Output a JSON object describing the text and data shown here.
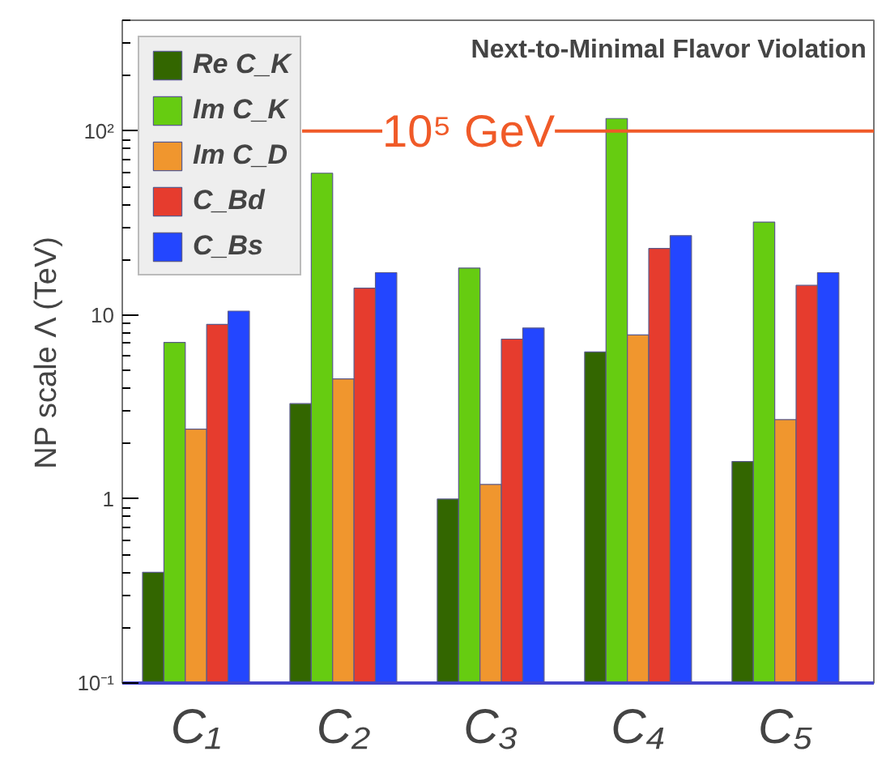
{
  "chart_data": {
    "type": "bar",
    "title": "Next-to-Minimal Flavor Violation",
    "ylabel": "NP scale Λ (TeV)",
    "categories": [
      "C₁",
      "C₂",
      "C₃",
      "C₄",
      "C₅"
    ],
    "series": [
      {
        "name": "Re C_K",
        "color": "#336600",
        "values": [
          0.4,
          3.3,
          1.0,
          6.3,
          1.6
        ]
      },
      {
        "name": "Im C_K",
        "color": "#66cc11",
        "values": [
          7.1,
          59,
          18,
          117,
          32
        ]
      },
      {
        "name": "Im C_D",
        "color": "#f0962e",
        "values": [
          2.4,
          4.5,
          1.2,
          7.8,
          2.7
        ]
      },
      {
        "name": "C_Bd",
        "color": "#e63c2e",
        "values": [
          8.9,
          14,
          7.4,
          23,
          14.5
        ]
      },
      {
        "name": "C_Bs",
        "color": "#2346ff",
        "values": [
          10.5,
          17,
          8.5,
          27,
          17
        ]
      }
    ],
    "log": "y",
    "ylim": [
      0.1,
      400
    ],
    "yticks": [
      {
        "value": 0.1,
        "label": "10⁻¹"
      },
      1,
      10,
      {
        "value": 100,
        "label": "10²"
      }
    ],
    "ref_lines": [
      {
        "axis": "y",
        "value": 100,
        "label": "10⁵ GeV",
        "color": "#f05a28"
      }
    ],
    "grid": false,
    "legend": "top left"
  }
}
